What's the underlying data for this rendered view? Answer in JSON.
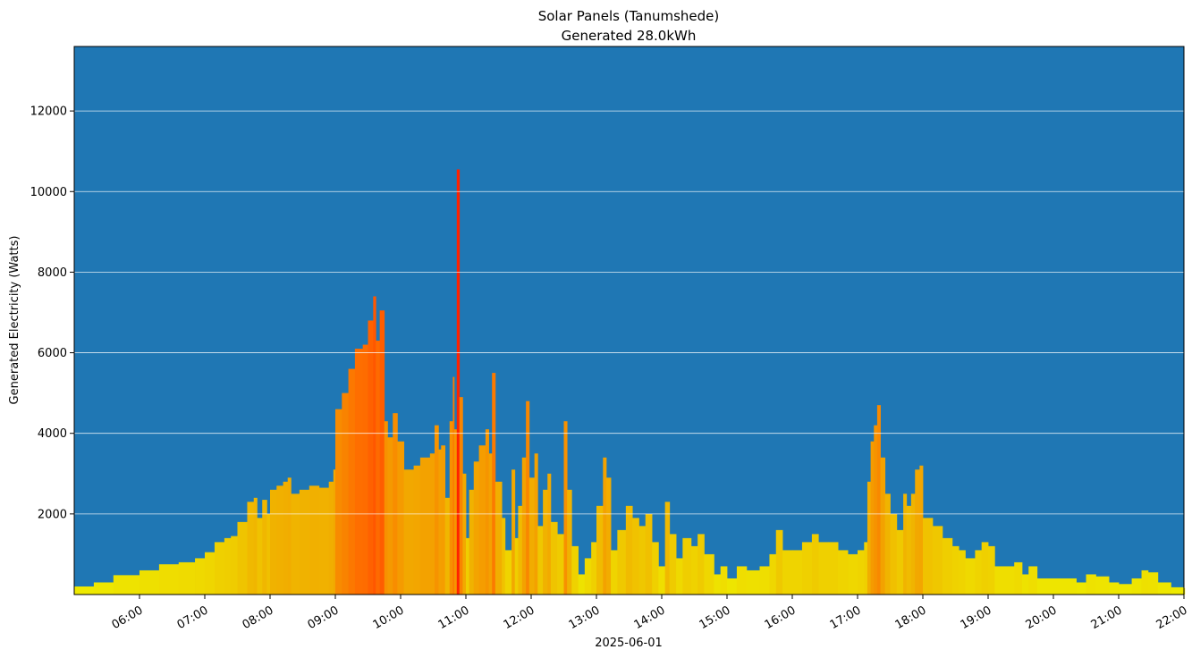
{
  "chart_data": {
    "type": "bar",
    "title": "Solar Panels (Tanumshede)",
    "subtitle": "Generated 28.0kWh",
    "xlabel": "2025-06-01",
    "ylabel": "Generated Electricity (Watts)",
    "ylim": [
      0,
      13600
    ],
    "xlim_hours": [
      5.0,
      22.0
    ],
    "grid": "horizontal",
    "colors": {
      "background": "#1f77b4",
      "low": "#eeee00",
      "mid": "#f0b400",
      "high": "#ff6600",
      "peak": "#ff2200",
      "grid": "#ffffff"
    },
    "y_ticks": [
      2000,
      4000,
      6000,
      8000,
      10000,
      12000
    ],
    "y_tick_labels": [
      "2000",
      "4000",
      "6000",
      "8000",
      "10000",
      "12000"
    ],
    "x_ticks_hours": [
      6,
      7,
      8,
      9,
      10,
      11,
      12,
      13,
      14,
      15,
      16,
      17,
      18,
      19,
      20,
      21,
      22
    ],
    "x_tick_labels": [
      "06:00",
      "07:00",
      "08:00",
      "09:00",
      "10:00",
      "11:00",
      "12:00",
      "13:00",
      "14:00",
      "15:00",
      "16:00",
      "17:00",
      "18:00",
      "19:00",
      "20:00",
      "21:00",
      "22:00"
    ],
    "series": [
      {
        "name": "Generated Electricity (Watts)",
        "points": [
          [
            5.0,
            200
          ],
          [
            5.3,
            300
          ],
          [
            5.6,
            480
          ],
          [
            6.0,
            600
          ],
          [
            6.3,
            750
          ],
          [
            6.6,
            800
          ],
          [
            6.85,
            900
          ],
          [
            7.0,
            1050
          ],
          [
            7.15,
            1300
          ],
          [
            7.3,
            1400
          ],
          [
            7.4,
            1450
          ],
          [
            7.5,
            1800
          ],
          [
            7.65,
            2300
          ],
          [
            7.75,
            2400
          ],
          [
            7.8,
            1900
          ],
          [
            7.88,
            2350
          ],
          [
            7.95,
            2000
          ],
          [
            8.0,
            2600
          ],
          [
            8.1,
            2700
          ],
          [
            8.2,
            2800
          ],
          [
            8.27,
            2900
          ],
          [
            8.32,
            2500
          ],
          [
            8.45,
            2600
          ],
          [
            8.6,
            2700
          ],
          [
            8.75,
            2650
          ],
          [
            8.9,
            2800
          ],
          [
            8.97,
            3100
          ],
          [
            9.0,
            4600
          ],
          [
            9.1,
            5000
          ],
          [
            9.2,
            5600
          ],
          [
            9.3,
            6100
          ],
          [
            9.42,
            6200
          ],
          [
            9.5,
            6800
          ],
          [
            9.58,
            7400
          ],
          [
            9.62,
            6300
          ],
          [
            9.68,
            7050
          ],
          [
            9.75,
            4300
          ],
          [
            9.8,
            3900
          ],
          [
            9.88,
            4500
          ],
          [
            9.95,
            3800
          ],
          [
            10.05,
            3100
          ],
          [
            10.2,
            3200
          ],
          [
            10.3,
            3400
          ],
          [
            10.45,
            3500
          ],
          [
            10.52,
            4200
          ],
          [
            10.58,
            3600
          ],
          [
            10.62,
            3700
          ],
          [
            10.68,
            2400
          ],
          [
            10.75,
            4300
          ],
          [
            10.8,
            5400
          ],
          [
            10.82,
            4100
          ],
          [
            10.86,
            10550
          ],
          [
            10.9,
            4900
          ],
          [
            10.95,
            3000
          ],
          [
            11.0,
            1400
          ],
          [
            11.05,
            2600
          ],
          [
            11.12,
            3300
          ],
          [
            11.2,
            3700
          ],
          [
            11.3,
            4100
          ],
          [
            11.35,
            3500
          ],
          [
            11.4,
            5500
          ],
          [
            11.45,
            2800
          ],
          [
            11.55,
            1900
          ],
          [
            11.6,
            1100
          ],
          [
            11.7,
            3100
          ],
          [
            11.75,
            1400
          ],
          [
            11.8,
            2200
          ],
          [
            11.86,
            3400
          ],
          [
            11.92,
            4800
          ],
          [
            11.97,
            2900
          ],
          [
            12.05,
            3500
          ],
          [
            12.1,
            1700
          ],
          [
            12.18,
            2600
          ],
          [
            12.25,
            3000
          ],
          [
            12.3,
            1800
          ],
          [
            12.4,
            1500
          ],
          [
            12.5,
            4300
          ],
          [
            12.55,
            2600
          ],
          [
            12.62,
            1200
          ],
          [
            12.72,
            500
          ],
          [
            12.82,
            900
          ],
          [
            12.92,
            1300
          ],
          [
            13.0,
            2200
          ],
          [
            13.1,
            3400
          ],
          [
            13.15,
            2900
          ],
          [
            13.22,
            1100
          ],
          [
            13.32,
            1600
          ],
          [
            13.45,
            2200
          ],
          [
            13.55,
            1900
          ],
          [
            13.65,
            1700
          ],
          [
            13.75,
            2000
          ],
          [
            13.85,
            1300
          ],
          [
            13.95,
            700
          ],
          [
            14.05,
            2300
          ],
          [
            14.12,
            1500
          ],
          [
            14.22,
            900
          ],
          [
            14.32,
            1400
          ],
          [
            14.45,
            1200
          ],
          [
            14.55,
            1500
          ],
          [
            14.65,
            1000
          ],
          [
            14.8,
            500
          ],
          [
            14.9,
            700
          ],
          [
            15.0,
            400
          ],
          [
            15.15,
            700
          ],
          [
            15.3,
            600
          ],
          [
            15.5,
            700
          ],
          [
            15.65,
            1000
          ],
          [
            15.75,
            1600
          ],
          [
            15.85,
            1100
          ],
          [
            16.0,
            1100
          ],
          [
            16.15,
            1300
          ],
          [
            16.3,
            1500
          ],
          [
            16.4,
            1300
          ],
          [
            16.55,
            1300
          ],
          [
            16.7,
            1100
          ],
          [
            16.85,
            1000
          ],
          [
            17.0,
            1100
          ],
          [
            17.1,
            1300
          ],
          [
            17.15,
            2800
          ],
          [
            17.2,
            3800
          ],
          [
            17.25,
            4200
          ],
          [
            17.3,
            4700
          ],
          [
            17.35,
            3400
          ],
          [
            17.42,
            2500
          ],
          [
            17.5,
            2000
          ],
          [
            17.6,
            1600
          ],
          [
            17.7,
            2500
          ],
          [
            17.75,
            2200
          ],
          [
            17.82,
            2500
          ],
          [
            17.88,
            3100
          ],
          [
            17.95,
            3200
          ],
          [
            18.0,
            1900
          ],
          [
            18.15,
            1700
          ],
          [
            18.3,
            1400
          ],
          [
            18.45,
            1200
          ],
          [
            18.55,
            1100
          ],
          [
            18.65,
            900
          ],
          [
            18.8,
            1100
          ],
          [
            18.9,
            1300
          ],
          [
            19.0,
            1200
          ],
          [
            19.1,
            700
          ],
          [
            19.3,
            700
          ],
          [
            19.4,
            800
          ],
          [
            19.52,
            500
          ],
          [
            19.62,
            700
          ],
          [
            19.75,
            400
          ],
          [
            19.9,
            400
          ],
          [
            20.1,
            400
          ],
          [
            20.35,
            300
          ],
          [
            20.5,
            500
          ],
          [
            20.65,
            450
          ],
          [
            20.85,
            300
          ],
          [
            21.0,
            260
          ],
          [
            21.2,
            400
          ],
          [
            21.35,
            600
          ],
          [
            21.45,
            550
          ],
          [
            21.6,
            300
          ],
          [
            21.8,
            180
          ],
          [
            22.0,
            160
          ]
        ]
      }
    ]
  }
}
